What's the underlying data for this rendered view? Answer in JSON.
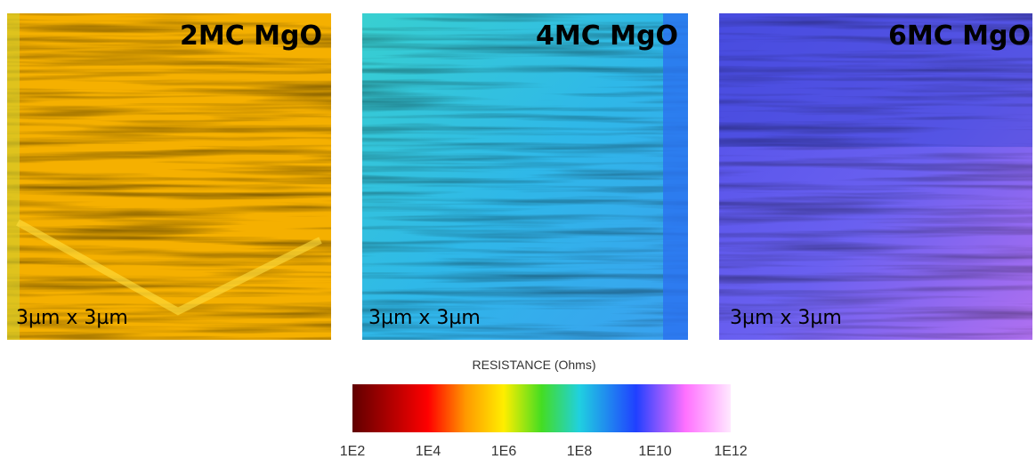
{
  "panels": [
    {
      "title": "2MC MgO",
      "scale": "3µm x 3µm"
    },
    {
      "title": "4MC MgO",
      "scale": "3µm x 3µm"
    },
    {
      "title": "6MC MgO",
      "scale": "3µm x 3µm"
    }
  ],
  "colorbar": {
    "title": "RESISTANCE (Ohms)",
    "ticks": [
      "1E2",
      "1E4",
      "1E6",
      "1E8",
      "1E10",
      "1E12"
    ]
  }
}
